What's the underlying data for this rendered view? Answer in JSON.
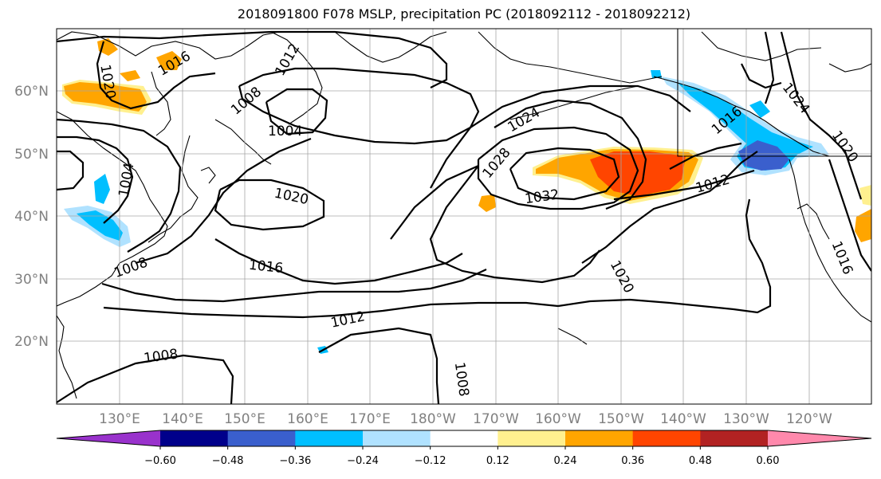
{
  "title": "2018091800 F078 MSLP, precipitation PC (2018092112 - 2018092212)",
  "lat_labels": [
    "60°N",
    "50°N",
    "40°N",
    "30°N",
    "20°N"
  ],
  "lon_labels": [
    "130°E",
    "140°E",
    "150°E",
    "160°E",
    "170°E",
    "180°W",
    "170°W",
    "160°W",
    "150°W",
    "140°W",
    "130°W",
    "120°W"
  ],
  "contour_labels": [
    "1020",
    "1016",
    "1012",
    "1008",
    "1004",
    "1004",
    "1008",
    "1020",
    "1016",
    "1012",
    "1008",
    "1008",
    "1024",
    "1028",
    "1032",
    "1020",
    "1012",
    "1016",
    "1024",
    "1020",
    "1016"
  ],
  "colorbar": {
    "colors": [
      "#9932cc",
      "#00008b",
      "#3a5fcd",
      "#00bfff",
      "#b0e2ff",
      "#ffffff",
      "#fff08f",
      "#ffa500",
      "#ff4500",
      "#b22222",
      "#ff89ac"
    ],
    "tick_labels": [
      "−0.60",
      "−0.48",
      "−0.36",
      "−0.24",
      "−0.12",
      "0.12",
      "0.24",
      "0.36",
      "0.48",
      "0.60"
    ]
  }
}
